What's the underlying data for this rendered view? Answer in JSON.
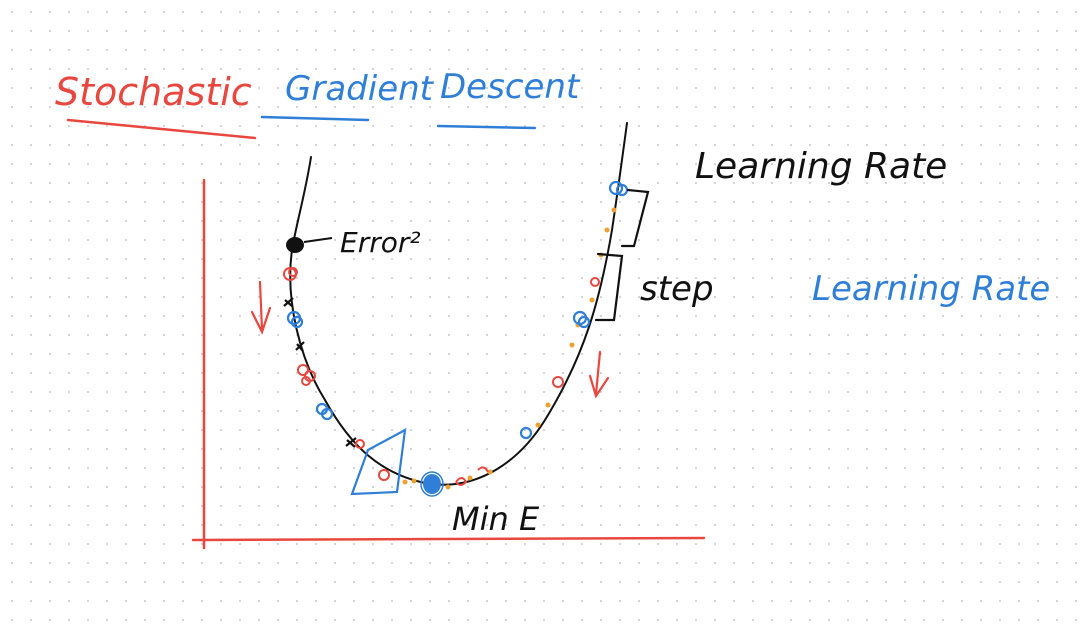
{
  "title": {
    "word1": "Stochastic",
    "word2": "Gradient",
    "word3": "Descent"
  },
  "labels": {
    "error": "Error²",
    "min": "Min E",
    "step": "step",
    "learning_rate_black": "Learning Rate",
    "learning_rate_blue": "Learning Rate"
  },
  "colors": {
    "red": "#e8473f",
    "blue": "#2f7fd8",
    "black": "#111111",
    "orange": "#f0a030",
    "grid_dot": "#c8c8c8"
  }
}
